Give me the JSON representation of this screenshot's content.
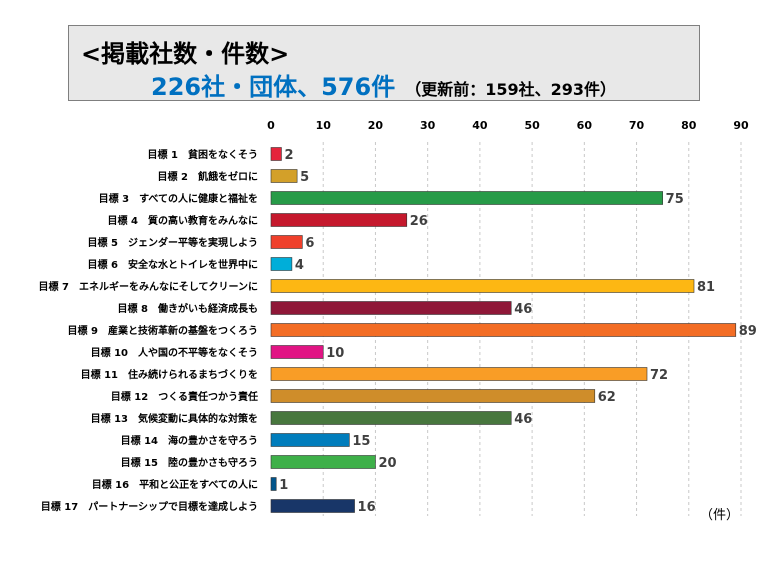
{
  "title": {
    "line1": "<掲載社数・件数>",
    "line2_main": "226社・団体、576件",
    "line2_sub": "（更新前：159社、293件）"
  },
  "unit_label": "（件）",
  "chart_data": {
    "type": "bar",
    "orientation": "horizontal",
    "xlim": [
      0,
      90
    ],
    "x_ticks": [
      0,
      10,
      20,
      30,
      40,
      50,
      60,
      70,
      80,
      90
    ],
    "grid": true,
    "categories": [
      "目標 1　貧困をなくそう",
      "目標 2　飢餓をゼロに",
      "目標 3　すべての人に健康と福祉を",
      "目標 4　質の高い教育をみんなに",
      "目標 5　ジェンダー平等を実現しよう",
      "目標 6　安全な水とトイレを世界中に",
      "目標 7　エネルギーをみんなにそしてクリーンに",
      "目標 8　働きがいも経済成長も",
      "目標 9　産業と技術革新の基盤をつくろう",
      "目標 10　人や国の不平等をなくそう",
      "目標 11　住み続けられるまちづくりを",
      "目標 12　つくる責任つかう責任",
      "目標 13　気候変動に具体的な対策を",
      "目標 14　海の豊かさを守ろう",
      "目標 15　陸の豊かさも守ろう",
      "目標 16　平和と公正をすべての人に",
      "目標 17　パートナーシップで目標を達成しよう"
    ],
    "values": [
      2,
      5,
      75,
      26,
      6,
      4,
      81,
      46,
      89,
      10,
      72,
      62,
      46,
      15,
      20,
      1,
      16
    ],
    "colors": [
      "#e5243b",
      "#d3a029",
      "#279b48",
      "#c5192d",
      "#ef402b",
      "#00aed9",
      "#fdb713",
      "#8f1838",
      "#f36d25",
      "#e11484",
      "#f99d26",
      "#cf8d2a",
      "#48773e",
      "#007dbc",
      "#3eb049",
      "#02558b",
      "#183668"
    ]
  }
}
